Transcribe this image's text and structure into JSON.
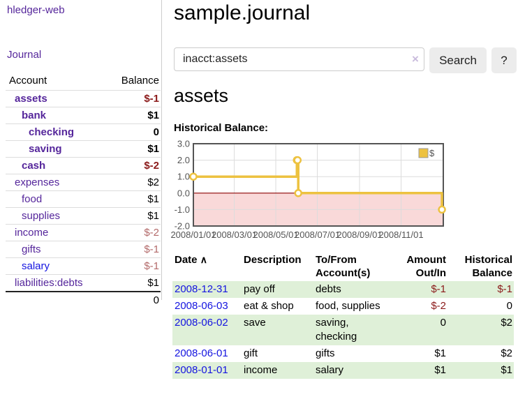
{
  "app": {
    "title": "hledger-web"
  },
  "sidebar": {
    "journal_link": "Journal",
    "table": {
      "account_header": "Account",
      "balance_header": "Balance"
    },
    "accounts": [
      {
        "name": "assets",
        "depth": 1,
        "bold": true,
        "link": "visited",
        "balance": "$-1"
      },
      {
        "name": "bank",
        "depth": 2,
        "bold": true,
        "link": "visited",
        "balance": "$1"
      },
      {
        "name": "checking",
        "depth": 3,
        "bold": true,
        "link": "visited",
        "balance": "0"
      },
      {
        "name": "saving",
        "depth": 3,
        "bold": true,
        "link": "visited",
        "balance": "$1"
      },
      {
        "name": "cash",
        "depth": 2,
        "bold": true,
        "link": "visited",
        "balance": "$-2"
      },
      {
        "name": "expenses",
        "depth": 1,
        "bold": false,
        "link": "visited",
        "balance": "$2"
      },
      {
        "name": "food",
        "depth": 2,
        "bold": false,
        "link": "visited",
        "balance": "$1"
      },
      {
        "name": "supplies",
        "depth": 2,
        "bold": false,
        "link": "visited",
        "balance": "$1"
      },
      {
        "name": "income",
        "depth": 1,
        "bold": false,
        "link": "visited",
        "balance": "$-2"
      },
      {
        "name": "gifts",
        "depth": 2,
        "bold": false,
        "link": "visited",
        "balance": "$-1"
      },
      {
        "name": "salary",
        "depth": 2,
        "bold": false,
        "link": "unvisited",
        "balance": "$-1"
      },
      {
        "name": "liabilities:debts",
        "depth": 1,
        "bold": false,
        "link": "visited",
        "balance": "$1"
      }
    ],
    "total": "0"
  },
  "header": {
    "title": "sample.journal"
  },
  "search": {
    "value": "inacct:assets",
    "clear_icon": "×",
    "button_label": "Search",
    "help_label": "?"
  },
  "account_page": {
    "title": "assets",
    "chart_label": "Historical Balance:"
  },
  "chart_data": {
    "type": "line",
    "step": true,
    "series": [
      {
        "name": "$",
        "color": "#edc240",
        "points": [
          {
            "date": "2008-01-01",
            "value": 1
          },
          {
            "date": "2008-06-01",
            "value": 2
          },
          {
            "date": "2008-06-02",
            "value": 2
          },
          {
            "date": "2008-06-03",
            "value": 0
          },
          {
            "date": "2008-12-31",
            "value": -1
          }
        ]
      }
    ],
    "ylim": [
      -2,
      3
    ],
    "yticks": [
      3,
      2,
      1,
      0,
      -1,
      -2
    ],
    "xticks": [
      {
        "date": "2008-01-01",
        "label": "2008/01/01"
      },
      {
        "date": "2008-03-01",
        "label": "2008/03/01"
      },
      {
        "date": "2008-05-01",
        "label": "2008/05/01"
      },
      {
        "date": "2008-07-01",
        "label": "2008/07/01"
      },
      {
        "date": "2008-09-01",
        "label": "2008/09/01"
      },
      {
        "date": "2008-11-01",
        "label": "2008/11/01"
      }
    ],
    "legend": {
      "label": "$",
      "position": "top-right"
    },
    "grid": true,
    "negative_fill": "#f9d9d9",
    "zero_line_color": "#8b0000",
    "grid_color": "#dcdcdc",
    "border_color": "#545454",
    "axis_text_color": "#545454"
  },
  "register": {
    "columns": {
      "date": "Date",
      "sort_icon": "∧",
      "description": "Description",
      "accounts": "To/From Account(s)",
      "amount": "Amount Out/In",
      "balance": "Historical Balance"
    },
    "rows": [
      {
        "date": "2008-12-31",
        "description": "pay off",
        "accounts": "debts",
        "amount": "$-1",
        "balance": "$-1",
        "shaded": true
      },
      {
        "date": "2008-06-03",
        "description": "eat & shop",
        "accounts": "food, supplies",
        "amount": "$-2",
        "balance": "0",
        "shaded": false
      },
      {
        "date": "2008-06-02",
        "description": "save",
        "accounts": "saving, checking",
        "amount": "0",
        "balance": "$2",
        "shaded": true
      },
      {
        "date": "2008-06-01",
        "description": "gift",
        "accounts": "gifts",
        "amount": "$1",
        "balance": "$2",
        "shaded": false
      },
      {
        "date": "2008-01-01",
        "description": "income",
        "accounts": "salary",
        "amount": "$1",
        "balance": "$1",
        "shaded": true
      }
    ]
  },
  "colors": {
    "visited_link": "#55269b",
    "link": "#1414e0",
    "negative_dark": "#8b1a1a",
    "negative_light": "#b36a6a",
    "row_shade": "#dff0d8",
    "series": "#edc240"
  }
}
